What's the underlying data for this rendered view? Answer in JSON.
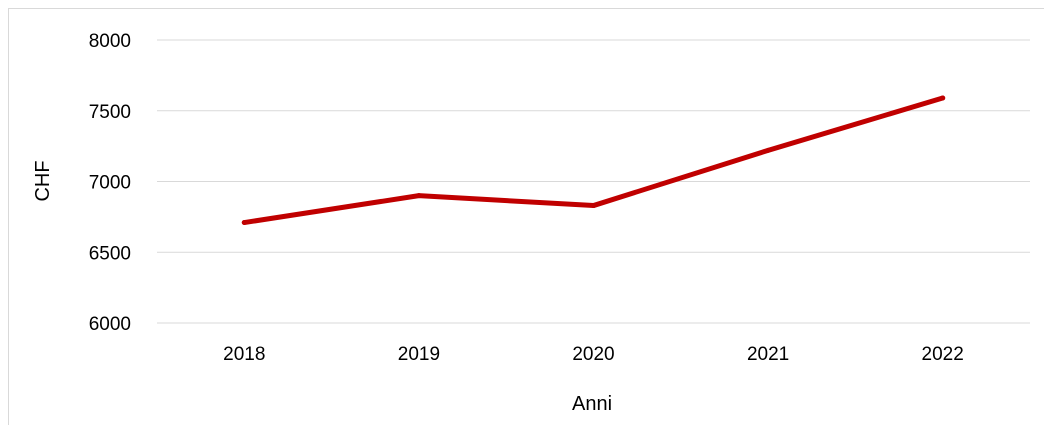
{
  "chart_data": {
    "type": "line",
    "categories": [
      "2018",
      "2019",
      "2020",
      "2021",
      "2022"
    ],
    "series": [
      {
        "values": [
          6710,
          6900,
          6830,
          7220,
          7590
        ]
      }
    ],
    "xlabel": "Anni",
    "ylabel": "CHF",
    "ylim": [
      6000,
      8000
    ],
    "yticks": [
      "6000",
      "6500",
      "7000",
      "7500",
      "8000"
    ],
    "grid": "horizontal",
    "line_color": "#c00000",
    "grid_color": "#d9d9d9"
  }
}
